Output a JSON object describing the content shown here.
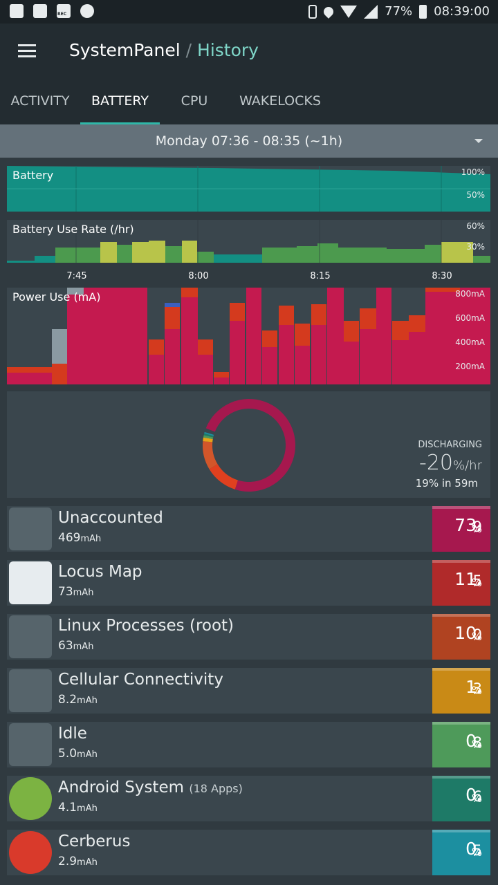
{
  "status_bar": {
    "battery_pct": "77%",
    "time": "08:39:00"
  },
  "app": {
    "name": "SystemPanel",
    "separator": "/",
    "section": "History"
  },
  "tabs": [
    {
      "label": "ACTIVITY",
      "active": false
    },
    {
      "label": "BATTERY",
      "active": true
    },
    {
      "label": "CPU",
      "active": false
    },
    {
      "label": "WAKELOCKS",
      "active": false
    }
  ],
  "range": {
    "label": "Monday 07:36 - 08:35 (~1h)"
  },
  "charts": {
    "battery": {
      "label": "Battery",
      "y_labels": [
        "100%",
        "50%"
      ]
    },
    "use_rate": {
      "label": "Battery Use Rate (/hr)",
      "y_labels": [
        "60%",
        "30%"
      ]
    },
    "power": {
      "label": "Power Use (mA)",
      "y_labels": [
        "800mA",
        "600mA",
        "400mA",
        "200mA"
      ]
    },
    "time_ticks": [
      "7:45",
      "8:00",
      "8:15",
      "8:30"
    ]
  },
  "summary": {
    "state": "DISCHARGING",
    "rate_value": "-20",
    "rate_unit": "%/hr",
    "projection": "19% in 59m",
    "donut_fractions": [
      0.739,
      0.115,
      0.1,
      0.013,
      0.008,
      0.006,
      0.005
    ]
  },
  "colors": {
    "accent": "#2fb7a8",
    "unaccounted": "#a6184e",
    "locus": "#b02a2a",
    "linux": "#b04321",
    "cellular": "#c98a16",
    "idle": "#4e9a5a",
    "android": "#1e7a67",
    "cerberus": "#1c8fa0"
  },
  "apps": [
    {
      "name": "Unaccounted",
      "extra": "",
      "amount": "469",
      "unit": "mAh",
      "pct_int": "73.",
      "pct_dec": "9",
      "pct_unit": "%",
      "icon": "battery-question-icon",
      "color": "#a6184e"
    },
    {
      "name": "Locus Map",
      "extra": "",
      "amount": "73",
      "unit": "mAh",
      "pct_int": "11.",
      "pct_dec": "5",
      "pct_unit": "%",
      "icon": "map-icon",
      "color": "#b02a2a"
    },
    {
      "name": "Linux Processes (root)",
      "extra": "",
      "amount": "63",
      "unit": "mAh",
      "pct_int": "10.",
      "pct_dec": "0",
      "pct_unit": "%",
      "icon": "terminal-icon",
      "color": "#b04321"
    },
    {
      "name": "Cellular Connectivity",
      "extra": "",
      "amount": "8.2",
      "unit": "mAh",
      "pct_int": "1.",
      "pct_dec": "3",
      "pct_unit": "%",
      "icon": "signal-icon",
      "color": "#c98a16"
    },
    {
      "name": "Idle",
      "extra": "",
      "amount": "5.0",
      "unit": "mAh",
      "pct_int": "0.",
      "pct_dec": "8",
      "pct_unit": "%",
      "icon": "sync-icon",
      "color": "#4e9a5a"
    },
    {
      "name": "Android System",
      "extra": "(18 Apps)",
      "amount": "4.1",
      "unit": "mAh",
      "pct_int": "0.",
      "pct_dec": "6",
      "pct_unit": "%",
      "icon": "gear-icon",
      "color": "#1e7a67"
    },
    {
      "name": "Cerberus",
      "extra": "",
      "amount": "2.9",
      "unit": "mAh",
      "pct_int": "0.",
      "pct_dec": "5",
      "pct_unit": "%",
      "icon": "cerberus-icon",
      "color": "#1c8fa0"
    }
  ]
}
